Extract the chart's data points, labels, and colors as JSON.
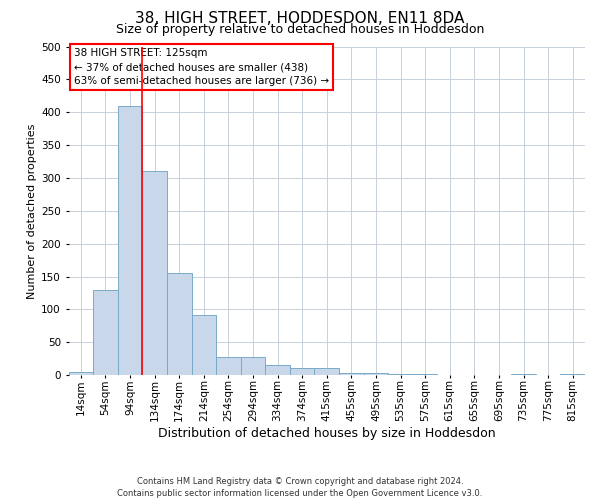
{
  "title": "38, HIGH STREET, HODDESDON, EN11 8DA",
  "subtitle": "Size of property relative to detached houses in Hoddesdon",
  "xlabel": "Distribution of detached houses by size in Hoddesdon",
  "ylabel": "Number of detached properties",
  "footnote1": "Contains HM Land Registry data © Crown copyright and database right 2024.",
  "footnote2": "Contains public sector information licensed under the Open Government Licence v3.0.",
  "categories": [
    "14sqm",
    "54sqm",
    "94sqm",
    "134sqm",
    "174sqm",
    "214sqm",
    "254sqm",
    "294sqm",
    "334sqm",
    "374sqm",
    "415sqm",
    "455sqm",
    "495sqm",
    "535sqm",
    "575sqm",
    "615sqm",
    "655sqm",
    "695sqm",
    "735sqm",
    "775sqm",
    "815sqm"
  ],
  "values": [
    5,
    130,
    410,
    310,
    155,
    92,
    28,
    28,
    16,
    11,
    11,
    4,
    4,
    1,
    1,
    0,
    0,
    0,
    1,
    0,
    1
  ],
  "bar_color": "#c8d8ea",
  "bar_edge_color": "#7aaac8",
  "grid_color": "#c8d0dc",
  "background_color": "#ffffff",
  "red_line_x": 2.5,
  "annotation_line1": "38 HIGH STREET: 125sqm",
  "annotation_line2": "← 37% of detached houses are smaller (438)",
  "annotation_line3": "63% of semi-detached houses are larger (736) →",
  "ylim_max": 500,
  "yticks": [
    0,
    50,
    100,
    150,
    200,
    250,
    300,
    350,
    400,
    450,
    500
  ],
  "title_fontsize": 11,
  "subtitle_fontsize": 9,
  "xlabel_fontsize": 9,
  "ylabel_fontsize": 8,
  "tick_fontsize": 7.5,
  "annot_fontsize": 7.5,
  "footnote_fontsize": 6
}
